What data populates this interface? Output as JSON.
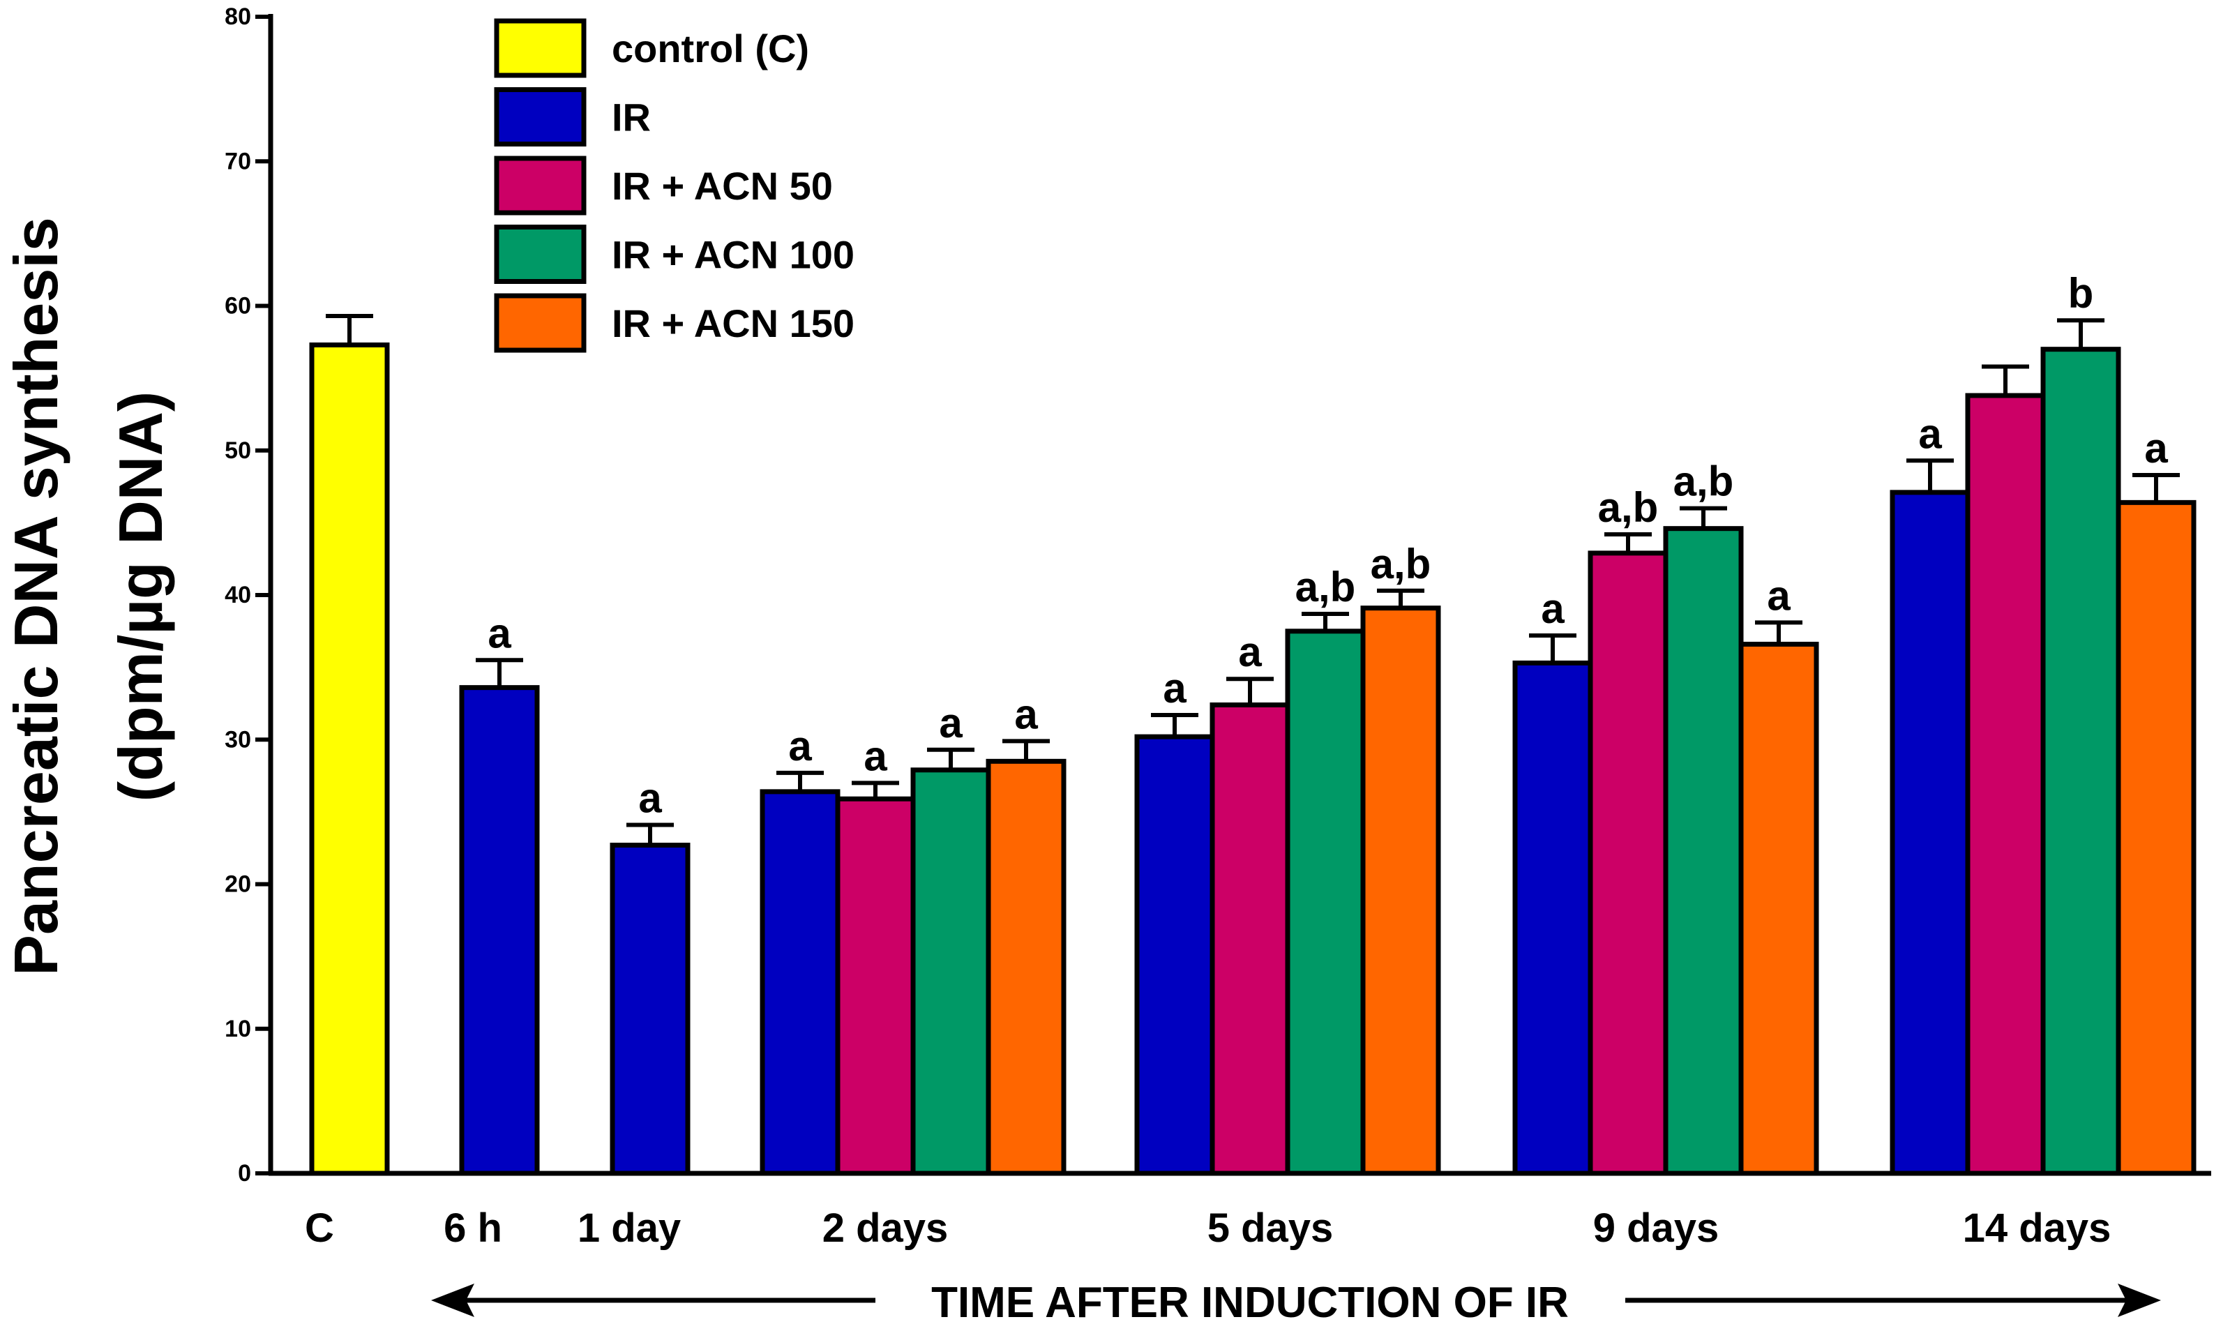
{
  "chart_data": {
    "type": "bar",
    "ylabel_line1": "Pancreatic DNA synthesis",
    "ylabel_line2": "(dpm/µg DNA)",
    "xlabel": "TIME AFTER INDUCTION OF IR",
    "ylim": [
      0,
      80
    ],
    "yticks": [
      0,
      10,
      20,
      30,
      40,
      50,
      60,
      70,
      80
    ],
    "legend_position": "top-left",
    "series": [
      {
        "name": "control (C)",
        "color": "#FFFF00"
      },
      {
        "name": "IR",
        "color": "#0000C0"
      },
      {
        "name": "IR + ACN 50",
        "color": "#CC0066"
      },
      {
        "name": "IR + ACN 100",
        "color": "#009966"
      },
      {
        "name": "IR + ACN 150",
        "color": "#FF6600"
      }
    ],
    "groups": [
      {
        "label": "C",
        "bars": [
          {
            "series": 0,
            "value": 57.3,
            "error": 2.0,
            "annotation": ""
          }
        ]
      },
      {
        "label": "6 h",
        "bars": [
          {
            "series": 1,
            "value": 33.6,
            "error": 1.9,
            "annotation": "a"
          }
        ]
      },
      {
        "label": "1 day",
        "bars": [
          {
            "series": 1,
            "value": 22.7,
            "error": 1.4,
            "annotation": "a"
          }
        ]
      },
      {
        "label": "2 days",
        "bars": [
          {
            "series": 1,
            "value": 26.4,
            "error": 1.3,
            "annotation": "a"
          },
          {
            "series": 2,
            "value": 25.9,
            "error": 1.1,
            "annotation": "a"
          },
          {
            "series": 3,
            "value": 27.9,
            "error": 1.4,
            "annotation": "a"
          },
          {
            "series": 4,
            "value": 28.5,
            "error": 1.4,
            "annotation": "a"
          }
        ]
      },
      {
        "label": "5 days",
        "bars": [
          {
            "series": 1,
            "value": 30.2,
            "error": 1.5,
            "annotation": "a"
          },
          {
            "series": 2,
            "value": 32.4,
            "error": 1.8,
            "annotation": "a"
          },
          {
            "series": 3,
            "value": 37.5,
            "error": 1.2,
            "annotation": "a,b"
          },
          {
            "series": 4,
            "value": 39.1,
            "error": 1.2,
            "annotation": "a,b"
          }
        ]
      },
      {
        "label": "9 days",
        "bars": [
          {
            "series": 1,
            "value": 35.3,
            "error": 1.9,
            "annotation": "a"
          },
          {
            "series": 2,
            "value": 42.9,
            "error": 1.3,
            "annotation": "a,b"
          },
          {
            "series": 3,
            "value": 44.6,
            "error": 1.4,
            "annotation": "a,b"
          },
          {
            "series": 4,
            "value": 36.6,
            "error": 1.5,
            "annotation": "a"
          }
        ]
      },
      {
        "label": "14 days",
        "bars": [
          {
            "series": 1,
            "value": 47.1,
            "error": 2.2,
            "annotation": "a"
          },
          {
            "series": 2,
            "value": 53.8,
            "error": 2.0,
            "annotation": ""
          },
          {
            "series": 3,
            "value": 57.0,
            "error": 2.0,
            "annotation": "b"
          },
          {
            "series": 4,
            "value": 46.4,
            "error": 1.9,
            "annotation": "a"
          }
        ]
      }
    ]
  }
}
